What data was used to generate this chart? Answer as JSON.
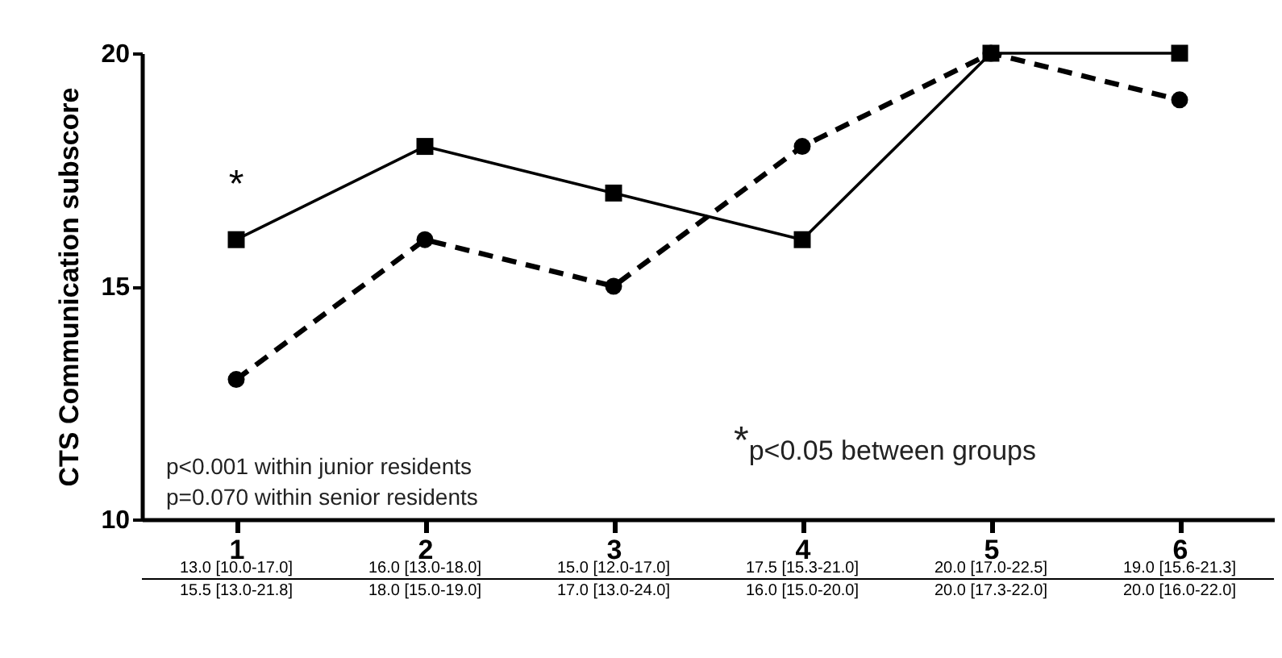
{
  "chart_data": {
    "type": "line",
    "ylabel": "CTS Communication subscore",
    "categories": [
      "1",
      "2",
      "3",
      "4",
      "5",
      "6"
    ],
    "ylim": [
      10,
      20
    ],
    "yticks": [
      10,
      15,
      20
    ],
    "grid": false,
    "legend": false,
    "series": [
      {
        "color": "#000000",
        "marker": "square",
        "line_style": "solid",
        "values": [
          16,
          18,
          17,
          16,
          20,
          20
        ]
      },
      {
        "color": "#000000",
        "marker": "circle",
        "line_style": "dashed",
        "values": [
          13,
          16,
          15,
          18,
          20,
          19
        ]
      }
    ],
    "annotations": [
      "*",
      "p<0.001 within junior residents",
      "p=0.070 within senior residents",
      "$^{*}$p<0.05 between groups",
      "13.0 [10.0-17.0]",
      "16.0 [13.0-18.0]",
      "15.0 [12.0-17.0]",
      "17.5 [15.3-21.0]",
      "20.0 [17.0-22.5]",
      "19.0 [15.6-21.3]",
      "15.5 [13.0-21.8]",
      "18.0 [15.0-19.0]",
      "17.0 [13.0-24.0]",
      "16.0 [15.0-20.0]",
      "20.0 [17.3-22.0]",
      "20.0 [16.0-22.0]"
    ]
  }
}
